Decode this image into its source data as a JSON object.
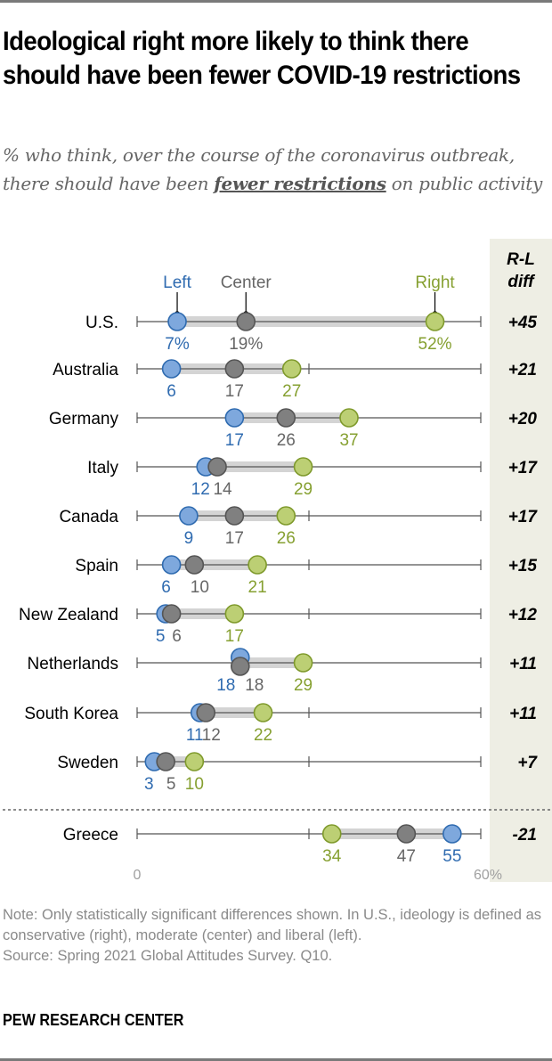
{
  "title": "Ideological right more likely to think there should have been fewer COVID-19 restrictions",
  "subtitle": {
    "before": "% who think, over the course of the coronavirus outbreak, there should have been ",
    "emphasis": "fewer restrictions",
    "after": " on public activity"
  },
  "note": "Note: Only statistically significant differences shown. In U.S., ideology is defined as conservative (right), moderate (center) and liberal (left).",
  "source": "Source: Spring 2021 Global Attitudes Survey. Q10.",
  "brand": "PEW RESEARCH CENTER",
  "colors": {
    "left": "#7ea8dd",
    "left_stroke": "#2f6bb0",
    "left_text": "#2f6bb0",
    "center": "#808080",
    "center_stroke": "#555555",
    "center_text": "#666666",
    "right": "#bccf74",
    "right_stroke": "#7f9a2c",
    "right_text": "#86a031",
    "range_bar": "#d4d4d4",
    "diff_bg": "#eeeee4"
  },
  "chart_data": {
    "type": "dot-range",
    "title": "Ideological right more likely to think there should have been fewer COVID-19 restrictions",
    "legend": [
      "Left",
      "Center",
      "Right"
    ],
    "diff_header": "R-L diff",
    "xlim": [
      0,
      60
    ],
    "xticks": [
      0,
      30,
      60
    ],
    "xtick_labels": [
      "0",
      "60%"
    ],
    "categories": [
      "U.S.",
      "Australia",
      "Germany",
      "Italy",
      "Canada",
      "Spain",
      "New Zealand",
      "Netherlands",
      "South Korea",
      "Sweden",
      "Greece"
    ],
    "series": [
      {
        "name": "Left",
        "values": [
          7,
          6,
          17,
          12,
          9,
          6,
          5,
          18,
          11,
          3,
          55
        ]
      },
      {
        "name": "Center",
        "values": [
          19,
          17,
          26,
          14,
          17,
          10,
          6,
          18,
          12,
          5,
          47
        ]
      },
      {
        "name": "Right",
        "values": [
          52,
          27,
          37,
          29,
          26,
          21,
          17,
          29,
          22,
          10,
          34
        ]
      }
    ],
    "value_labels": {
      "Left": [
        "7%",
        "6",
        "17",
        "12",
        "9",
        "6",
        "5",
        "18",
        "11",
        "3",
        "55"
      ],
      "Center": [
        "19%",
        "17",
        "26",
        "14",
        "17",
        "10",
        "6",
        "18",
        "12",
        "5",
        "47"
      ],
      "Right": [
        "52%",
        "27",
        "37",
        "29",
        "26",
        "21",
        "17",
        "29",
        "22",
        "10",
        "34"
      ]
    },
    "diff": [
      "+45",
      "+21",
      "+20",
      "+17",
      "+17",
      "+15",
      "+12",
      "+11",
      "+11",
      "+7",
      "-21"
    ],
    "separator_before": "Greece"
  }
}
